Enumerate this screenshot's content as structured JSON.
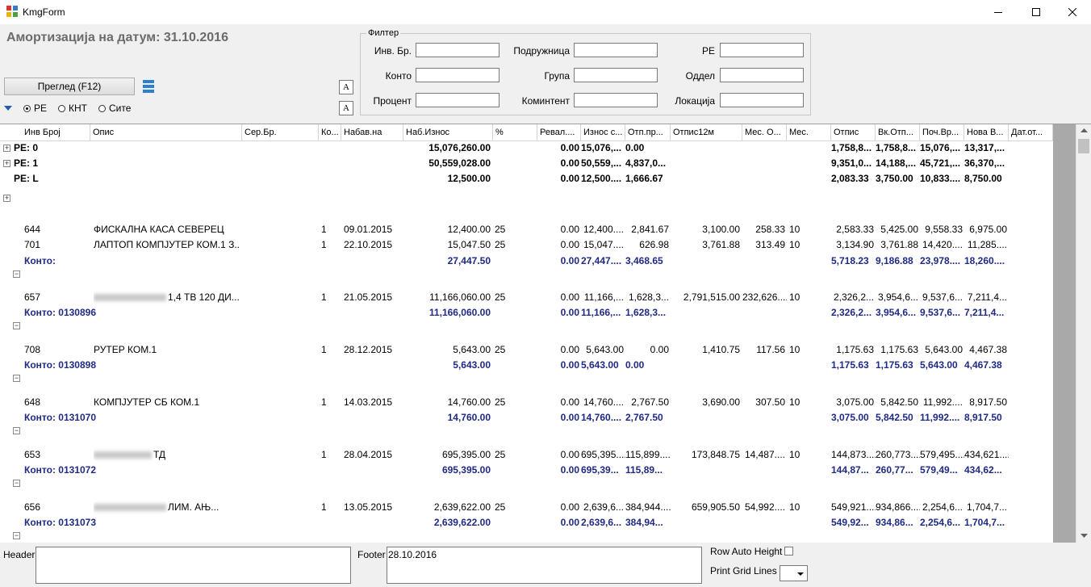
{
  "window": {
    "title": "KmgForm",
    "controls": [
      "minimize-icon",
      "maximize-icon",
      "close-icon"
    ]
  },
  "heading": "Амортизација на датум: 31.10.2016",
  "toolbar": {
    "preview_label": "Преглед (F12)",
    "radios": [
      {
        "label": "РЕ",
        "checked": true
      },
      {
        "label": "КНТ",
        "checked": false
      },
      {
        "label": "Сите",
        "checked": false
      }
    ]
  },
  "filter": {
    "legend": "Филтер",
    "fields": [
      {
        "label": "Инв. Бр.",
        "value": ""
      },
      {
        "label": "Подружница",
        "value": ""
      },
      {
        "label": "РЕ",
        "value": ""
      },
      {
        "label": "Конто",
        "value": ""
      },
      {
        "label": "Група",
        "value": ""
      },
      {
        "label": "Оддел",
        "value": ""
      },
      {
        "label": "Процент",
        "value": ""
      },
      {
        "label": "Коминтент",
        "value": ""
      },
      {
        "label": "Локација",
        "value": ""
      }
    ]
  },
  "grid": {
    "columns": [
      "Инв Број",
      "Опис",
      "Сер.Бр.",
      "Ко...",
      "Набав.на",
      "Наб.Износ",
      "%",
      "Ревал....",
      "Износ с...",
      "Отп.пр...",
      "Отпис12м",
      "Мес. О...",
      "Мес.",
      "Отпис",
      "Вк.Отп...",
      "Поч.Вр...",
      "Нова В...",
      "Дат.от..."
    ],
    "group_rows": [
      {
        "label": "РЕ: 0",
        "nab": "15,076,260.00",
        "reval": "0.00",
        "iznos": "15,076,...",
        "otp": "0.00",
        "otpis": "1,758,8...",
        "vk": "1,758,8...",
        "poc": "15,076,...",
        "nova": "13,317,..."
      },
      {
        "label": "РЕ: 1",
        "nab": "50,559,028.00",
        "reval": "0.00",
        "iznos": "50,559,...",
        "otp": "4,837,0...",
        "otpis": "9,351,0...",
        "vk": "14,188,...",
        "poc": "45,721,...",
        "nova": "36,370,..."
      },
      {
        "label": "РЕ: L",
        "nab": "12,500.00",
        "reval": "0.00",
        "iznos": "12,500....",
        "otp": "1,666.67",
        "otpis": "2,083.33",
        "vk": "3,750.00",
        "poc": "10,833....",
        "nova": "8,750.00"
      }
    ],
    "detail_rows": [
      {
        "inv": "644",
        "opis": "ФИСКАЛНА КАСА СЕВЕРЕЦ",
        "ko": "1",
        "date": "09.01.2015",
        "nab": "12,400.00",
        "pct": "25",
        "reval": "0.00",
        "iznos": "12,400....",
        "otp": "2,841.67",
        "otp12": "3,100.00",
        "mes_o": "258.33",
        "mes": "10",
        "otpis": "2,583.33",
        "vk": "5,425.00",
        "poc": "9,558.33",
        "nova": "6,975.00"
      },
      {
        "inv": "701",
        "opis": "ЛАПТОП  КОМПЈУТЕР КОМ.1 З...",
        "ko": "1",
        "date": "22.10.2015",
        "nab": "15,047.50",
        "pct": "25",
        "reval": "0.00",
        "iznos": "15,047....",
        "otp": "626.98",
        "otp12": "3,761.88",
        "mes_o": "313.49",
        "mes": "10",
        "otpis": "3,134.90",
        "vk": "3,761.88",
        "poc": "14,420....",
        "nova": "11,285...."
      },
      {
        "inv": "657",
        "opis": "1,4 ТВ 120 ДИ...",
        "ko": "1",
        "date": "21.05.2015",
        "nab": "11,166,060.00",
        "pct": "25",
        "reval": "0.00",
        "iznos": "11,166,...",
        "otp": "1,628,3...",
        "otp12": "2,791,515.00",
        "mes_o": "232,626....",
        "mes": "10",
        "otpis": "2,326,2...",
        "vk": "3,954,6...",
        "poc": "9,537,6...",
        "nova": "7,211,4..."
      },
      {
        "inv": "708",
        "opis": "РУТЕР КОМ.1",
        "ko": "1",
        "date": "28.12.2015",
        "nab": "5,643.00",
        "pct": "25",
        "reval": "0.00",
        "iznos": "5,643.00",
        "otp": "0.00",
        "otp12": "1,410.75",
        "mes_o": "117.56",
        "mes": "10",
        "otpis": "1,175.63",
        "vk": "1,175.63",
        "poc": "5,643.00",
        "nova": "4,467.38"
      },
      {
        "inv": "648",
        "opis": "КОМПЈУТЕР СБ КОМ.1",
        "ko": "1",
        "date": "14.03.2015",
        "nab": "14,760.00",
        "pct": "25",
        "reval": "0.00",
        "iznos": "14,760....",
        "otp": "2,767.50",
        "otp12": "3,690.00",
        "mes_o": "307.50",
        "mes": "10",
        "otpis": "3,075.00",
        "vk": "5,842.50",
        "poc": "11,992....",
        "nova": "8,917.50"
      },
      {
        "inv": "653",
        "opis": "ТД",
        "ko": "1",
        "date": "28.04.2015",
        "nab": "695,395.00",
        "pct": "25",
        "reval": "0.00",
        "iznos": "695,395....",
        "otp": "115,899....",
        "otp12": "173,848.75",
        "mes_o": "14,487....",
        "mes": "10",
        "otpis": "144,873....",
        "vk": "260,773....",
        "poc": "579,495....",
        "nova": "434,621...."
      },
      {
        "inv": "656",
        "opis": "ЛИМ. АЊ...",
        "ko": "1",
        "date": "13.05.2015",
        "nab": "2,639,622.00",
        "pct": "25",
        "reval": "0.00",
        "iznos": "2,639,6...",
        "otp": "384,944....",
        "otp12": "659,905.50",
        "mes_o": "54,992....",
        "mes": "10",
        "otpis": "549,921....",
        "vk": "934,866....",
        "poc": "2,254,6...",
        "nova": "1,704,7..."
      }
    ],
    "subtotal_rows": [
      {
        "label": "Конто:",
        "nab": "27,447.50",
        "reval": "0.00",
        "iznos": "27,447....",
        "otp": "3,468.65",
        "otpis": "5,718.23",
        "vk": "9,186.88",
        "poc": "23,978....",
        "nova": "18,260...."
      },
      {
        "label": "Конто: 0130896",
        "nab": "11,166,060.00",
        "reval": "0.00",
        "iznos": "11,166,...",
        "otp": "1,628,3...",
        "otpis": "2,326,2...",
        "vk": "3,954,6...",
        "poc": "9,537,6...",
        "nova": "7,211,4..."
      },
      {
        "label": "Конто: 0130898",
        "nab": "5,643.00",
        "reval": "0.00",
        "iznos": "5,643.00",
        "otp": "0.00",
        "otpis": "1,175.63",
        "vk": "1,175.63",
        "poc": "5,643.00",
        "nova": "4,467.38"
      },
      {
        "label": "Конто: 0131070",
        "nab": "14,760.00",
        "reval": "0.00",
        "iznos": "14,760....",
        "otp": "2,767.50",
        "otpis": "3,075.00",
        "vk": "5,842.50",
        "poc": "11,992....",
        "nova": "8,917.50"
      },
      {
        "label": "Конто: 0131072",
        "nab": "695,395.00",
        "reval": "0.00",
        "iznos": "695,39...",
        "otp": "115,89...",
        "otpis": "144,87...",
        "vk": "260,77...",
        "poc": "579,49...",
        "nova": "434,62..."
      },
      {
        "label": "Конто: 0131073",
        "nab": "2,639,622.00",
        "reval": "0.00",
        "iznos": "2,639,6...",
        "otp": "384,94...",
        "otpis": "549,92...",
        "vk": "934,86...",
        "poc": "2,254,6...",
        "nova": "1,704,7..."
      }
    ]
  },
  "bottom": {
    "header_label": "Header",
    "header_value": "",
    "footer_label": "Footer",
    "footer_value": "28.10.2016",
    "row_auto_height_label": "Row Auto Height",
    "print_grid_lines_label": "Print Grid Lines",
    "print_grid_lines_value": ""
  }
}
